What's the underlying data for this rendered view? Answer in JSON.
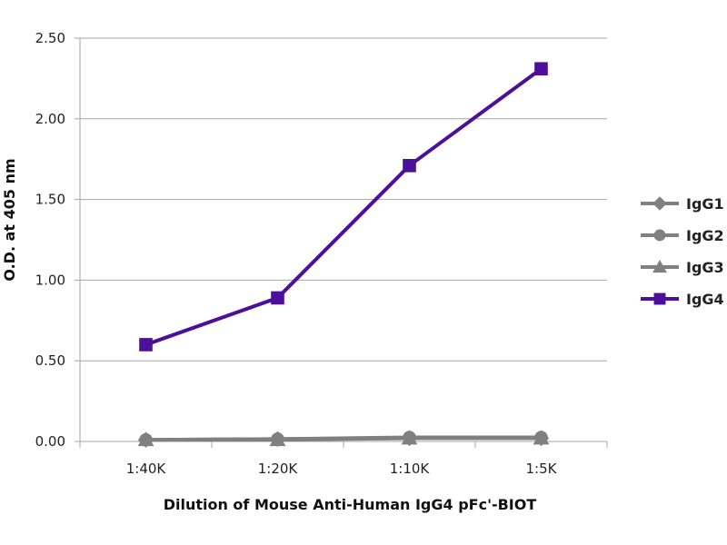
{
  "chart_data": {
    "type": "line",
    "categories": [
      "1:40K",
      "1:20K",
      "1:10K",
      "1:5K"
    ],
    "xlabel": "Dilution of Mouse Anti-Human IgG4 pFc'-BIOT",
    "ylabel": "O.D. at 405 nm",
    "ylim": [
      0,
      2.5
    ],
    "yticks": [
      "0.00",
      "0.50",
      "1.00",
      "1.50",
      "2.00",
      "2.50"
    ],
    "grid": true,
    "legend_position": "right",
    "series": [
      {
        "name": "IgG1",
        "marker": "diamond",
        "color": "#808080",
        "values": [
          0.01,
          0.015,
          0.02,
          0.02
        ]
      },
      {
        "name": "IgG2",
        "marker": "circle",
        "color": "#808080",
        "values": [
          0.01,
          0.015,
          0.025,
          0.025
        ]
      },
      {
        "name": "IgG3",
        "marker": "triangle",
        "color": "#808080",
        "values": [
          0.01,
          0.01,
          0.02,
          0.02
        ]
      },
      {
        "name": "IgG4",
        "marker": "square",
        "color": "#4b0f99",
        "values": [
          0.6,
          0.89,
          1.71,
          2.31
        ]
      }
    ]
  }
}
